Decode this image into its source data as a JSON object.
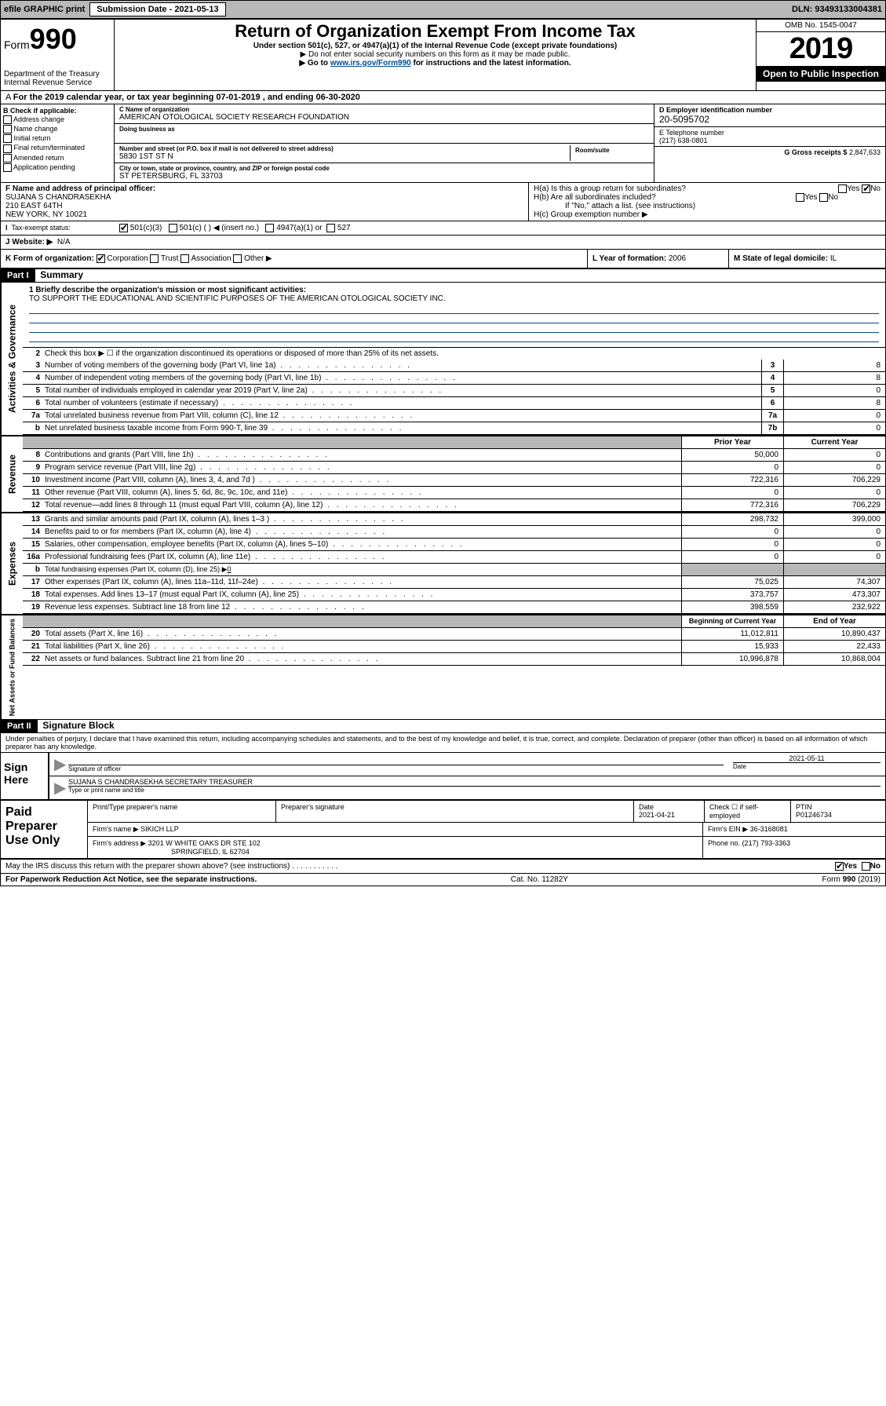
{
  "topbar": {
    "efile": "efile GRAPHIC print",
    "submission_label": "Submission Date - 2021-05-13",
    "dln": "DLN: 93493133004381"
  },
  "header": {
    "form_label": "Form",
    "form_number": "990",
    "dept": "Department of the Treasury\nInternal Revenue Service",
    "title": "Return of Organization Exempt From Income Tax",
    "subtitle": "Under section 501(c), 527, or 4947(a)(1) of the Internal Revenue Code (except private foundations)",
    "note1": "▶ Do not enter social security numbers on this form as it may be made public.",
    "note2_pre": "▶ Go to ",
    "note2_link": "www.irs.gov/Form990",
    "note2_post": " for instructions and the latest information.",
    "omb": "OMB No. 1545-0047",
    "year": "2019",
    "inspect": "Open to Public Inspection"
  },
  "cal": "For the 2019 calendar year, or tax year beginning 07-01-2019    , and ending 06-30-2020",
  "B": {
    "label": "B Check if applicable:",
    "items": [
      "Address change",
      "Name change",
      "Initial return",
      "Final return/terminated",
      "Amended return",
      "Application pending"
    ]
  },
  "C": {
    "name_label": "C Name of organization",
    "name": "AMERICAN OTOLOGICAL SOCIETY RESEARCH FOUNDATION",
    "dba_label": "Doing business as",
    "addr_label": "Number and street (or P.O. box if mail is not delivered to street address)",
    "room_label": "Room/suite",
    "addr": "5830 1ST ST N",
    "city_label": "City or town, state or province, country, and ZIP or foreign postal code",
    "city": "ST PETERSBURG, FL  33703"
  },
  "D": {
    "label": "D Employer identification number",
    "val": "20-5095702"
  },
  "E": {
    "label": "E Telephone number",
    "val": "(217) 638-0801"
  },
  "G": {
    "label": "G Gross receipts $",
    "val": "2,847,633"
  },
  "F": {
    "label": "F  Name and address of principal officer:",
    "name": "SUJANA S CHANDRASEKHA",
    "addr1": "210 EAST 64TH",
    "addr2": "NEW YORK, NY 10021"
  },
  "H": {
    "a": "H(a)  Is this a group return for subordinates?",
    "a_yes": "Yes",
    "a_no": "No",
    "b": "H(b)  Are all subordinates included?",
    "b_yes": "Yes",
    "b_no": "No",
    "b_note": "If \"No,\" attach a list. (see instructions)",
    "c": "H(c)  Group exemption number ▶"
  },
  "I": {
    "label": "Tax-exempt status:",
    "opt1": "501(c)(3)",
    "opt2": "501(c) (  ) ◀ (insert no.)",
    "opt3": "4947(a)(1) or",
    "opt4": "527"
  },
  "J": {
    "label": "J   Website: ▶",
    "val": "N/A"
  },
  "K": {
    "label": "K Form of organization:",
    "opts": [
      "Corporation",
      "Trust",
      "Association",
      "Other ▶"
    ]
  },
  "L": {
    "label": "L Year of formation:",
    "val": "2006"
  },
  "M": {
    "label": "M State of legal domicile:",
    "val": "IL"
  },
  "partI": {
    "hdr": "Part I",
    "title": "Summary"
  },
  "summary": {
    "line1_label": "1  Briefly describe the organization's mission or most significant activities:",
    "line1_val": "TO SUPPORT THE EDUCATIONAL AND SCIENTIFIC PURPOSES OF THE AMERICAN OTOLOGICAL SOCIETY INC.",
    "line2": "Check this box ▶ ☐  if the organization discontinued its operations or disposed of more than 25% of its net assets.",
    "rows_a": [
      {
        "n": "3",
        "t": "Number of voting members of the governing body (Part VI, line 1a)",
        "b": "3",
        "v": "8"
      },
      {
        "n": "4",
        "t": "Number of independent voting members of the governing body (Part VI, line 1b)",
        "b": "4",
        "v": "8"
      },
      {
        "n": "5",
        "t": "Total number of individuals employed in calendar year 2019 (Part V, line 2a)",
        "b": "5",
        "v": "0"
      },
      {
        "n": "6",
        "t": "Total number of volunteers (estimate if necessary)",
        "b": "6",
        "v": "8"
      },
      {
        "n": "7a",
        "t": "Total unrelated business revenue from Part VIII, column (C), line 12",
        "b": "7a",
        "v": "0"
      },
      {
        "n": "b",
        "t": "Net unrelated business taxable income from Form 990-T, line 39",
        "b": "7b",
        "v": "0"
      }
    ],
    "col_prior": "Prior Year",
    "col_curr": "Current Year",
    "rows_rev": [
      {
        "n": "8",
        "t": "Contributions and grants (Part VIII, line 1h)",
        "p": "50,000",
        "c": "0"
      },
      {
        "n": "9",
        "t": "Program service revenue (Part VIII, line 2g)",
        "p": "0",
        "c": "0"
      },
      {
        "n": "10",
        "t": "Investment income (Part VIII, column (A), lines 3, 4, and 7d )",
        "p": "722,316",
        "c": "706,229"
      },
      {
        "n": "11",
        "t": "Other revenue (Part VIII, column (A), lines 5, 6d, 8c, 9c, 10c, and 11e)",
        "p": "0",
        "c": "0"
      },
      {
        "n": "12",
        "t": "Total revenue—add lines 8 through 11 (must equal Part VIII, column (A), line 12)",
        "p": "772,316",
        "c": "706,229"
      }
    ],
    "rows_exp": [
      {
        "n": "13",
        "t": "Grants and similar amounts paid (Part IX, column (A), lines 1–3 )",
        "p": "298,732",
        "c": "399,000"
      },
      {
        "n": "14",
        "t": "Benefits paid to or for members (Part IX, column (A), line 4)",
        "p": "0",
        "c": "0"
      },
      {
        "n": "15",
        "t": "Salaries, other compensation, employee benefits (Part IX, column (A), lines 5–10)",
        "p": "0",
        "c": "0"
      },
      {
        "n": "16a",
        "t": "Professional fundraising fees (Part IX, column (A), line 11e)",
        "p": "0",
        "c": "0"
      }
    ],
    "row_16b_n": "b",
    "row_16b": "Total fundraising expenses (Part IX, column (D), line 25) ▶",
    "row_16b_v": "0",
    "rows_exp2": [
      {
        "n": "17",
        "t": "Other expenses (Part IX, column (A), lines 11a–11d, 11f–24e)",
        "p": "75,025",
        "c": "74,307"
      },
      {
        "n": "18",
        "t": "Total expenses. Add lines 13–17 (must equal Part IX, column (A), line 25)",
        "p": "373,757",
        "c": "473,307"
      },
      {
        "n": "19",
        "t": "Revenue less expenses. Subtract line 18 from line 12",
        "p": "398,559",
        "c": "232,922"
      }
    ],
    "col_begin": "Beginning of Current Year",
    "col_end": "End of Year",
    "rows_net": [
      {
        "n": "20",
        "t": "Total assets (Part X, line 16)",
        "p": "11,012,811",
        "c": "10,890,437"
      },
      {
        "n": "21",
        "t": "Total liabilities (Part X, line 26)",
        "p": "15,933",
        "c": "22,433"
      },
      {
        "n": "22",
        "t": "Net assets or fund balances. Subtract line 21 from line 20",
        "p": "10,996,878",
        "c": "10,868,004"
      }
    ]
  },
  "side": {
    "act": "Activities & Governance",
    "rev": "Revenue",
    "exp": "Expenses",
    "net": "Net Assets or Fund Balances"
  },
  "partII": {
    "hdr": "Part II",
    "title": "Signature Block"
  },
  "perjury": "Under penalties of perjury, I declare that I have examined this return, including accompanying schedules and statements, and to the best of my knowledge and belief, it is true, correct, and complete. Declaration of preparer (other than officer) is based on all information of which preparer has any knowledge.",
  "sign": {
    "label": "Sign Here",
    "sig_label": "Signature of officer",
    "date": "2021-05-11",
    "date_label": "Date",
    "name": "SUJANA S CHANDRASEKHA  SECRETARY TREASURER",
    "name_label": "Type or print name and title"
  },
  "paid": {
    "label": "Paid Preparer Use Only",
    "h1": "Print/Type preparer's name",
    "h2": "Preparer's signature",
    "h3": "Date",
    "date": "2021-04-21",
    "h4": "Check ☐ if self-employed",
    "h5": "PTIN",
    "ptin": "P01246734",
    "firm_label": "Firm's name    ▶",
    "firm": "SIKICH LLP",
    "ein_label": "Firm's EIN ▶",
    "ein": "36-3168081",
    "addr_label": "Firm's address ▶",
    "addr1": "3201 W WHITE OAKS DR STE 102",
    "addr2": "SPRINGFIELD, IL  62704",
    "phone_label": "Phone no.",
    "phone": "(217) 793-3363"
  },
  "discuss": {
    "q": "May the IRS discuss this return with the preparer shown above? (see instructions)",
    "yes": "Yes",
    "no": "No"
  },
  "footer": {
    "left": "For Paperwork Reduction Act Notice, see the separate instructions.",
    "mid": "Cat. No. 11282Y",
    "right": "Form 990 (2019)"
  }
}
